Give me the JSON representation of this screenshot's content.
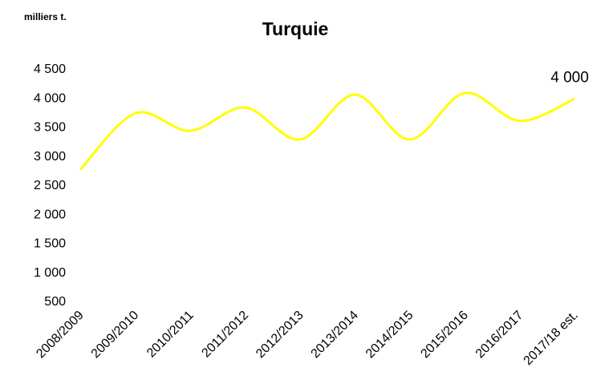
{
  "chart_data": {
    "type": "line",
    "title": "Turquie",
    "unit_label": "milliers t.",
    "categories": [
      "2008/2009",
      "2009/2010",
      "2010/2011",
      "2011/2012",
      "2012/2013",
      "2013/2014",
      "2014/2015",
      "2015/2016",
      "2016/2017",
      "2017/18 est."
    ],
    "series": [
      {
        "name": "Turquie",
        "color": "#ffff00",
        "values": [
          2780,
          3750,
          3450,
          3850,
          3300,
          4070,
          3300,
          4100,
          3620,
          4000
        ],
        "value_labels": [
          null,
          null,
          null,
          null,
          null,
          null,
          null,
          null,
          null,
          "4 000"
        ]
      }
    ],
    "ylim": [
      500,
      4500
    ],
    "yticks": [
      500,
      {
        "value": 1000,
        "label": "1 000"
      },
      {
        "value": 1500,
        "label": "1 500"
      },
      {
        "value": 2000,
        "label": "2 000"
      },
      {
        "value": 2500,
        "label": "2 500"
      },
      {
        "value": 3000,
        "label": "3 000"
      },
      {
        "value": 3500,
        "label": "3 500"
      },
      {
        "value": 4000,
        "label": "4 000"
      },
      {
        "value": 4500,
        "label": "4 500"
      }
    ],
    "grid": false,
    "smooth": true
  }
}
